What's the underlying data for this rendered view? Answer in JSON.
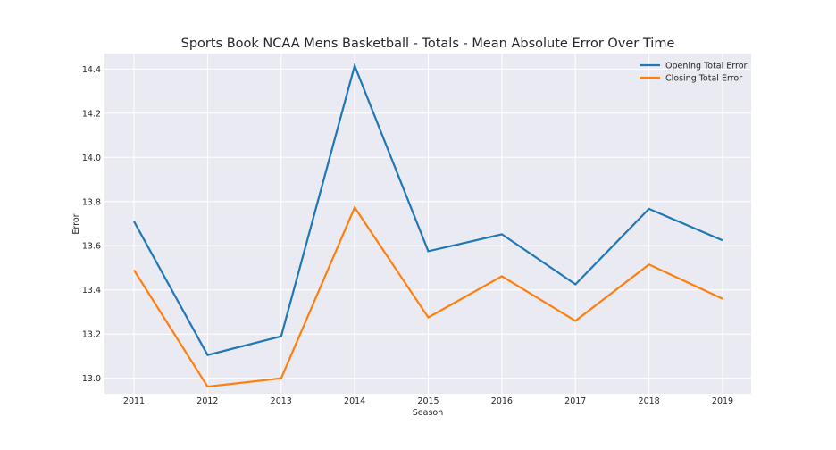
{
  "chart_data": {
    "type": "line",
    "title": "Sports Book NCAA Mens Basketball - Totals - Mean Absolute Error Over Time",
    "xlabel": "Season",
    "ylabel": "Error",
    "x": [
      "2011",
      "2012",
      "2013",
      "2014",
      "2015",
      "2016",
      "2017",
      "2018",
      "2019"
    ],
    "ylim": [
      12.93,
      14.47
    ],
    "yticks": [
      "13.0",
      "13.2",
      "13.4",
      "13.6",
      "13.8",
      "14.0",
      "14.2",
      "14.4"
    ],
    "grid": true,
    "legend_position": "top-right",
    "series": [
      {
        "name": "Opening Total Error",
        "color": "#1f77b4",
        "values": [
          13.71,
          13.105,
          13.19,
          14.415,
          13.575,
          13.652,
          13.425,
          13.767,
          13.624
        ]
      },
      {
        "name": "Closing Total Error",
        "color": "#ff7f0e",
        "values": [
          13.49,
          12.962,
          13.0,
          13.773,
          13.275,
          13.462,
          13.26,
          13.515,
          13.36
        ]
      }
    ]
  }
}
